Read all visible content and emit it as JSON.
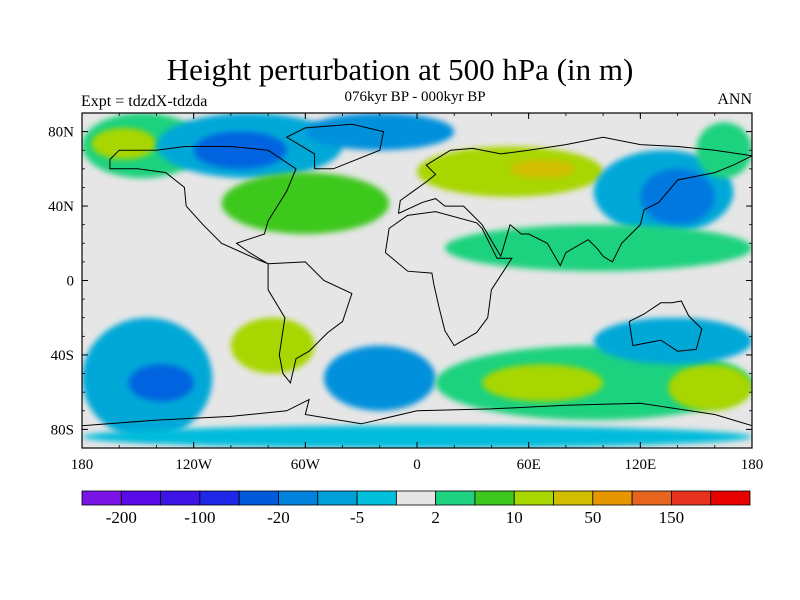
{
  "title": "Height perturbation at 500 hPa (in m)",
  "subtitle": "076kyr BP - 000kyr BP",
  "left_label": "Expt = tdzdX-tdzda",
  "right_label": "ANN",
  "map": {
    "projection": "equirectangular",
    "lon_range": [
      -180,
      180
    ],
    "lat_range": [
      -90,
      90
    ],
    "lat_ticks": [
      {
        "value": 80,
        "label": "80N"
      },
      {
        "value": 40,
        "label": "40N"
      },
      {
        "value": 0,
        "label": "0"
      },
      {
        "value": -40,
        "label": "40S"
      },
      {
        "value": -80,
        "label": "80S"
      }
    ],
    "lon_ticks": [
      {
        "value": -180,
        "label": "180"
      },
      {
        "value": -120,
        "label": "120W"
      },
      {
        "value": -60,
        "label": "60W"
      },
      {
        "value": 0,
        "label": "0"
      },
      {
        "value": 60,
        "label": "60E"
      },
      {
        "value": 120,
        "label": "120E"
      },
      {
        "value": 180,
        "label": "180"
      }
    ],
    "background_color": "#e6e6e6",
    "regions": [
      {
        "name": "north-pacific-green",
        "lon": [
          -180,
          -115
        ],
        "lat": [
          55,
          90
        ],
        "color": "#1fd27e"
      },
      {
        "name": "alaska-yellowgreen",
        "lon": [
          -175,
          -140
        ],
        "lat": [
          65,
          82
        ],
        "color": "#a8d600"
      },
      {
        "name": "canada-blue",
        "lon": [
          -140,
          -40
        ],
        "lat": [
          55,
          90
        ],
        "color": "#00a8d8"
      },
      {
        "name": "canada-deep-blue",
        "lon": [
          -120,
          -70
        ],
        "lat": [
          60,
          80
        ],
        "color": "#0064e0"
      },
      {
        "name": "greenland-blue",
        "lon": [
          -60,
          20
        ],
        "lat": [
          70,
          90
        ],
        "color": "#0090dc"
      },
      {
        "name": "atlantic-north-yellowgreen",
        "lon": [
          -95,
          -30
        ],
        "lat": [
          32,
          50
        ],
        "color": "#a8d600"
      },
      {
        "name": "atlantic-north-green",
        "lon": [
          -105,
          -15
        ],
        "lat": [
          25,
          58
        ],
        "color": "#3cc81e"
      },
      {
        "name": "eurasia-yellowgreen",
        "lon": [
          0,
          100
        ],
        "lat": [
          45,
          72
        ],
        "color": "#a8d600"
      },
      {
        "name": "eurasia-yellow",
        "lon": [
          50,
          85
        ],
        "lat": [
          55,
          65
        ],
        "color": "#d2be00"
      },
      {
        "name": "siberia-blue",
        "lon": [
          95,
          170
        ],
        "lat": [
          25,
          70
        ],
        "color": "#00a8d8"
      },
      {
        "name": "east-asia-deep-blue",
        "lon": [
          120,
          160
        ],
        "lat": [
          30,
          60
        ],
        "color": "#0078e0"
      },
      {
        "name": "north-pacific-east-green",
        "lon": [
          150,
          180
        ],
        "lat": [
          55,
          85
        ],
        "color": "#1fd27e"
      },
      {
        "name": "tropical-band-green",
        "lon": [
          15,
          180
        ],
        "lat": [
          5,
          30
        ],
        "color": "#1fd27e"
      },
      {
        "name": "south-pacific-blue",
        "lon": [
          -180,
          -110
        ],
        "lat": [
          -85,
          -20
        ],
        "color": "#00a8d8"
      },
      {
        "name": "south-pacific-deep-blue",
        "lon": [
          -155,
          -120
        ],
        "lat": [
          -65,
          -45
        ],
        "color": "#0064e0"
      },
      {
        "name": "south-america-yellowgreen",
        "lon": [
          -100,
          -55
        ],
        "lat": [
          -50,
          -20
        ],
        "color": "#a8d600"
      },
      {
        "name": "south-atlantic-blue",
        "lon": [
          -50,
          10
        ],
        "lat": [
          -70,
          -35
        ],
        "color": "#0090dc"
      },
      {
        "name": "south-indian-green",
        "lon": [
          10,
          180
        ],
        "lat": [
          -75,
          -35
        ],
        "color": "#1fd27e"
      },
      {
        "name": "south-indian-yellowgreen",
        "lon": [
          35,
          100
        ],
        "lat": [
          -65,
          -45
        ],
        "color": "#a8d600"
      },
      {
        "name": "tasman-yellowgreen",
        "lon": [
          135,
          180
        ],
        "lat": [
          -70,
          -45
        ],
        "color": "#a8d600"
      },
      {
        "name": "australia-blue",
        "lon": [
          95,
          180
        ],
        "lat": [
          -45,
          -20
        ],
        "color": "#00a8d8"
      },
      {
        "name": "antarctic-blue",
        "lon": [
          -180,
          180
        ],
        "lat": [
          -90,
          -78
        ],
        "color": "#00bcdc"
      }
    ],
    "coastlines": [
      {
        "name": "north-america",
        "points": [
          [
            -165,
            65
          ],
          [
            -160,
            70
          ],
          [
            -140,
            70
          ],
          [
            -125,
            72
          ],
          [
            -100,
            72
          ],
          [
            -80,
            70
          ],
          [
            -65,
            60
          ],
          [
            -70,
            48
          ],
          [
            -80,
            32
          ],
          [
            -82,
            25
          ],
          [
            -97,
            20
          ],
          [
            -90,
            15
          ],
          [
            -80,
            9
          ],
          [
            -85,
            11
          ],
          [
            -105,
            20
          ],
          [
            -115,
            30
          ],
          [
            -124,
            40
          ],
          [
            -125,
            50
          ],
          [
            -135,
            58
          ],
          [
            -150,
            60
          ],
          [
            -165,
            60
          ],
          [
            -165,
            65
          ]
        ]
      },
      {
        "name": "greenland",
        "points": [
          [
            -55,
            60
          ],
          [
            -45,
            60
          ],
          [
            -20,
            70
          ],
          [
            -18,
            80
          ],
          [
            -35,
            84
          ],
          [
            -60,
            82
          ],
          [
            -70,
            77
          ],
          [
            -55,
            68
          ],
          [
            -55,
            60
          ]
        ]
      },
      {
        "name": "south-america",
        "points": [
          [
            -80,
            9
          ],
          [
            -60,
            10
          ],
          [
            -50,
            0
          ],
          [
            -35,
            -7
          ],
          [
            -40,
            -22
          ],
          [
            -48,
            -28
          ],
          [
            -58,
            -38
          ],
          [
            -65,
            -42
          ],
          [
            -68,
            -55
          ],
          [
            -72,
            -50
          ],
          [
            -74,
            -40
          ],
          [
            -71,
            -20
          ],
          [
            -80,
            -5
          ],
          [
            -80,
            9
          ]
        ]
      },
      {
        "name": "africa",
        "points": [
          [
            -17,
            15
          ],
          [
            -15,
            28
          ],
          [
            -5,
            35
          ],
          [
            10,
            37
          ],
          [
            32,
            31
          ],
          [
            35,
            28
          ],
          [
            43,
            12
          ],
          [
            51,
            12
          ],
          [
            40,
            -5
          ],
          [
            38,
            -20
          ],
          [
            32,
            -28
          ],
          [
            20,
            -35
          ],
          [
            15,
            -27
          ],
          [
            12,
            -15
          ],
          [
            9,
            -2
          ],
          [
            8,
            4
          ],
          [
            -5,
            5
          ],
          [
            -17,
            15
          ]
        ]
      },
      {
        "name": "eurasia",
        "points": [
          [
            -10,
            36
          ],
          [
            -9,
            43
          ],
          [
            -2,
            48
          ],
          [
            5,
            53
          ],
          [
            10,
            57
          ],
          [
            5,
            62
          ],
          [
            18,
            70
          ],
          [
            30,
            71
          ],
          [
            45,
            68
          ],
          [
            60,
            70
          ],
          [
            80,
            73
          ],
          [
            100,
            77
          ],
          [
            120,
            73
          ],
          [
            140,
            72
          ],
          [
            160,
            70
          ],
          [
            180,
            67
          ],
          [
            170,
            62
          ],
          [
            160,
            58
          ],
          [
            140,
            54
          ],
          [
            130,
            42
          ],
          [
            122,
            38
          ],
          [
            120,
            30
          ],
          [
            110,
            20
          ],
          [
            105,
            10
          ],
          [
            100,
            13
          ],
          [
            97,
            17
          ],
          [
            92,
            22
          ],
          [
            80,
            15
          ],
          [
            77,
            8
          ],
          [
            70,
            20
          ],
          [
            60,
            25
          ],
          [
            56,
            25
          ],
          [
            50,
            30
          ],
          [
            45,
            13
          ],
          [
            35,
            30
          ],
          [
            28,
            37
          ],
          [
            25,
            40
          ],
          [
            15,
            40
          ],
          [
            10,
            44
          ],
          [
            3,
            42
          ],
          [
            -10,
            36
          ]
        ]
      },
      {
        "name": "australia",
        "points": [
          [
            114,
            -22
          ],
          [
            122,
            -18
          ],
          [
            131,
            -12
          ],
          [
            137,
            -12
          ],
          [
            142,
            -11
          ],
          [
            146,
            -19
          ],
          [
            153,
            -26
          ],
          [
            150,
            -37
          ],
          [
            140,
            -38
          ],
          [
            131,
            -32
          ],
          [
            116,
            -35
          ],
          [
            114,
            -22
          ]
        ]
      },
      {
        "name": "antarctica",
        "points": [
          [
            -180,
            -78
          ],
          [
            -140,
            -75
          ],
          [
            -100,
            -73
          ],
          [
            -70,
            -70
          ],
          [
            -58,
            -64
          ],
          [
            -60,
            -72
          ],
          [
            -30,
            -77
          ],
          [
            0,
            -70
          ],
          [
            40,
            -69
          ],
          [
            80,
            -67
          ],
          [
            120,
            -66
          ],
          [
            160,
            -72
          ],
          [
            180,
            -78
          ]
        ]
      }
    ]
  },
  "colorbar": {
    "colors": [
      "#7a14e6",
      "#5a0ae6",
      "#3c14e6",
      "#1e28e6",
      "#005adc",
      "#0082dc",
      "#00a0d8",
      "#00c0dc",
      "#e6e6e6",
      "#1ed282",
      "#3cc81e",
      "#a8d600",
      "#d2be00",
      "#e69600",
      "#e6641e",
      "#e6321e",
      "#e60000"
    ],
    "labels": [
      {
        "boundary": 1,
        "text": "-200"
      },
      {
        "boundary": 3,
        "text": "-100"
      },
      {
        "boundary": 5,
        "text": "-20"
      },
      {
        "boundary": 7,
        "text": "-5"
      },
      {
        "boundary": 9,
        "text": "2"
      },
      {
        "boundary": 11,
        "text": "10"
      },
      {
        "boundary": 13,
        "text": "50"
      },
      {
        "boundary": 15,
        "text": "150"
      }
    ]
  }
}
